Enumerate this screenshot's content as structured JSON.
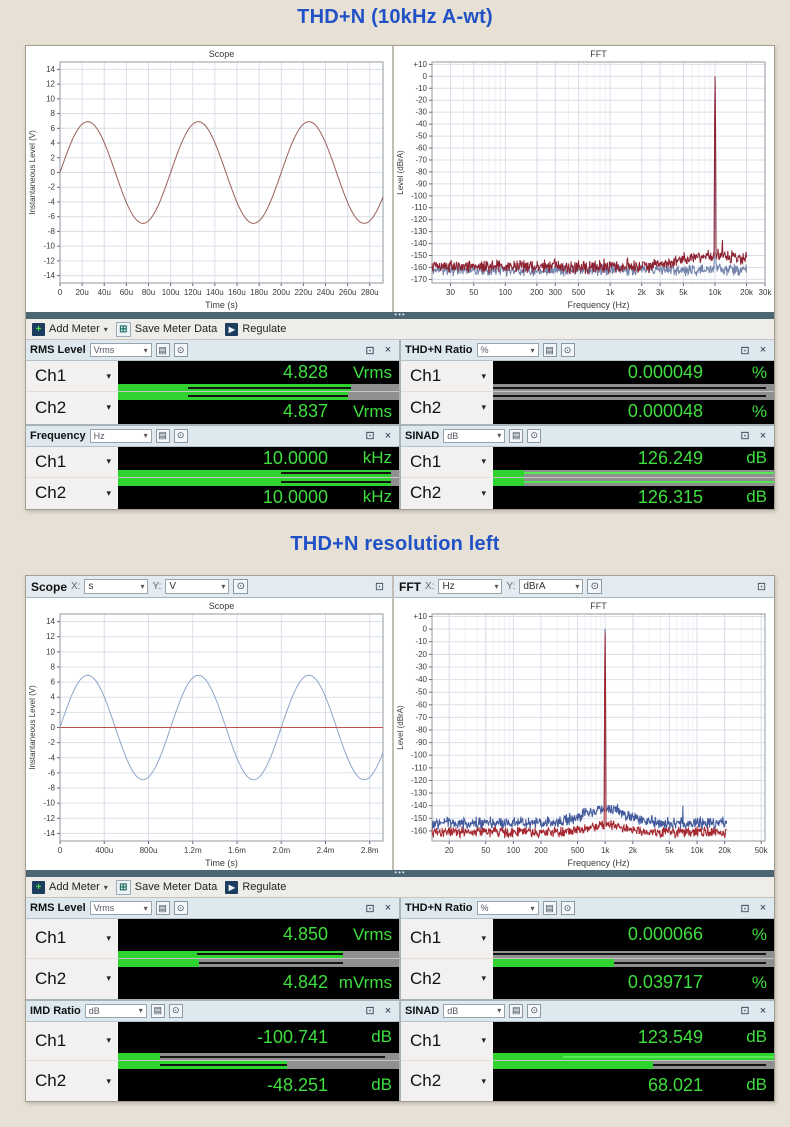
{
  "page": {
    "heading1": "THD+N (10kHz A-wt)",
    "heading2": "THD+N resolution left"
  },
  "colors": {
    "heading_blue": "#2151c6",
    "value_green": "#3fdd3f",
    "bar_green": "#2fd32f",
    "splitter": "#4d6673",
    "meter_header_bg": "#dde8ef",
    "page_bg": "#e7e1d5"
  },
  "toolbar": {
    "add_meter": "Add Meter",
    "save_meter_data": "Save Meter Data",
    "regulate": "Regulate"
  },
  "sections": [
    {
      "meters": [
        {
          "title": "RMS Level",
          "unit_selector": "Vrms",
          "channels": [
            {
              "label": "Ch1",
              "value": "4.828",
              "unit": "Vrms",
              "bar": {
                "fill": 83,
                "line": [
                  25,
                  83
                ]
              }
            },
            {
              "label": "Ch2",
              "value": "4.837",
              "unit": "Vrms",
              "bar": {
                "fill": 82,
                "line": [
                  25,
                  82
                ]
              }
            }
          ]
        },
        {
          "title": "THD+N Ratio",
          "unit_selector": "%",
          "channels": [
            {
              "label": "Ch1",
              "value": "0.000049",
              "unit": "%",
              "bar": {
                "fill": 0,
                "line": [
                  0,
                  97
                ]
              }
            },
            {
              "label": "Ch2",
              "value": "0.000048",
              "unit": "%",
              "bar": {
                "fill": 0,
                "line": [
                  0,
                  97
                ]
              }
            }
          ]
        },
        {
          "title": "Frequency",
          "unit_selector": "Hz",
          "channels": [
            {
              "label": "Ch1",
              "value": "10.0000",
              "unit": "kHz",
              "bar": {
                "fill": 97,
                "line": [
                  58,
                  97
                ]
              }
            },
            {
              "label": "Ch2",
              "value": "10.0000",
              "unit": "kHz",
              "bar": {
                "fill": 97,
                "line": [
                  58,
                  97
                ]
              }
            }
          ]
        },
        {
          "title": "SINAD",
          "unit_selector": "dB",
          "channels": [
            {
              "label": "Ch1",
              "value": "126.249",
              "unit": "dB",
              "bar": {
                "fill": 11,
                "line": [
                  11,
                  100
                ],
                "green": true
              }
            },
            {
              "label": "Ch2",
              "value": "126.315",
              "unit": "dB",
              "bar": {
                "fill": 11,
                "line": [
                  11,
                  100
                ],
                "green": true
              }
            }
          ]
        }
      ]
    },
    {
      "scope_header": {
        "title": "Scope",
        "x_label": "X:",
        "x_value": "s",
        "y_label": "Y:",
        "y_value": "V"
      },
      "fft_header": {
        "title": "FFT",
        "x_label": "X:",
        "x_value": "Hz",
        "y_label": "Y:",
        "y_value": "dBrA"
      },
      "meters": [
        {
          "title": "RMS Level",
          "unit_selector": "Vrms",
          "channels": [
            {
              "label": "Ch1",
              "value": "4.850",
              "unit": "Vrms",
              "bar": {
                "fill": 80,
                "line": [
                  28,
                  80
                ]
              }
            },
            {
              "label": "Ch2",
              "value": "4.842",
              "unit": "mVrms",
              "bar": {
                "fill": 29,
                "line": [
                  29,
                  80
                ]
              }
            }
          ]
        },
        {
          "title": "THD+N Ratio",
          "unit_selector": "%",
          "channels": [
            {
              "label": "Ch1",
              "value": "0.000066",
              "unit": "%",
              "bar": {
                "fill": 0,
                "line": [
                  0,
                  97
                ]
              }
            },
            {
              "label": "Ch2",
              "value": "0.039717",
              "unit": "%",
              "bar": {
                "fill": 43,
                "line": [
                  43,
                  97
                ]
              }
            }
          ]
        },
        {
          "title": "IMD Ratio",
          "unit_selector": "dB",
          "channels": [
            {
              "label": "Ch1",
              "value": "-100.741",
              "unit": "dB",
              "bar": {
                "fill": 15,
                "line": [
                  15,
                  95
                ]
              }
            },
            {
              "label": "Ch2",
              "value": "-48.251",
              "unit": "dB",
              "bar": {
                "fill": 60,
                "line": [
                  15,
                  60
                ]
              }
            }
          ]
        },
        {
          "title": "SINAD",
          "unit_selector": "dB",
          "channels": [
            {
              "label": "Ch1",
              "value": "123.549",
              "unit": "dB",
              "bar": {
                "fill": 100,
                "line": [
                  25,
                  100
                ],
                "green": true
              }
            },
            {
              "label": "Ch2",
              "value": "68.021",
              "unit": "dB",
              "bar": {
                "fill": 57,
                "line": [
                  57,
                  97
                ]
              }
            }
          ]
        }
      ]
    }
  ],
  "chart_data": [
    {
      "id": "scope-top",
      "type": "line",
      "title": "Scope",
      "xlabel": "Time (s)",
      "ylabel": "Instantaneous Level (V)",
      "xscale": "linear",
      "xlim": [
        0,
        0.000292
      ],
      "ylim": [
        -15,
        15
      ],
      "ml": 34,
      "xticks": {
        "values": [
          0,
          2e-05,
          4e-05,
          6e-05,
          8e-05,
          0.0001,
          0.00012,
          0.00014,
          0.00016,
          0.00018,
          0.0002,
          0.00022,
          0.00024,
          0.00026,
          0.00028
        ],
        "labels": [
          "0",
          "20u",
          "40u",
          "60u",
          "80u",
          "100u",
          "120u",
          "140u",
          "160u",
          "180u",
          "200u",
          "220u",
          "240u",
          "260u",
          "280u"
        ]
      },
      "yticks": {
        "values": [
          14,
          12,
          10,
          8,
          6,
          4,
          2,
          0,
          -2,
          -4,
          -6,
          -8,
          -10,
          -12,
          -14
        ],
        "labels": [
          "14",
          "12",
          "10",
          "8",
          "6",
          "4",
          "2",
          "0",
          "-2",
          "-4",
          "-6",
          "-8",
          "-10",
          "-12",
          "-14"
        ]
      },
      "series": [
        {
          "name": "ch1-sine",
          "kind": "sine",
          "amplitude": 6.9,
          "period": 0.0001,
          "color": "#9a6059",
          "width": 1
        }
      ]
    },
    {
      "id": "fft-top",
      "type": "line",
      "title": "FFT",
      "xlabel": "Frequency (Hz)",
      "ylabel": "Level (dBrA)",
      "xscale": "log",
      "xlim": [
        20,
        30000
      ],
      "ylim": [
        -173,
        12
      ],
      "ml": 38,
      "xticks": {
        "values": [
          30,
          50,
          100,
          200,
          300,
          500,
          1000,
          2000,
          3000,
          5000,
          10000,
          20000,
          30000
        ],
        "labels": [
          "30",
          "50",
          "100",
          "200",
          "300",
          "500",
          "1k",
          "2k",
          "3k",
          "5k",
          "10k",
          "20k",
          "30k"
        ]
      },
      "yticks": {
        "values": [
          10,
          0,
          -10,
          -20,
          -30,
          -40,
          -50,
          -60,
          -70,
          -80,
          -90,
          -100,
          -110,
          -120,
          -130,
          -140,
          -150,
          -160,
          -170
        ],
        "labels": [
          "+10",
          "0",
          "-10",
          "-20",
          "-30",
          "-40",
          "-50",
          "-60",
          "-70",
          "-80",
          "-90",
          "-100",
          "-110",
          "-120",
          "-130",
          "-140",
          "-150",
          "-160",
          "-170"
        ]
      },
      "series": [
        {
          "name": "ch2-noise",
          "kind": "noise",
          "seed": 11,
          "floor": -162,
          "jitter": 6,
          "fmax": 20000,
          "color": "#7484ad",
          "peaks": [
            {
              "f": 10000,
              "db": -4
            }
          ]
        },
        {
          "name": "ch1-noise",
          "kind": "noise",
          "seed": 5,
          "floor": -159,
          "jitter": 7,
          "fmax": 20000,
          "color": "#8e2130",
          "humps": [
            {
              "f": 10000,
              "w": 0.3,
              "a": 9
            }
          ],
          "peaks": [
            {
              "f": 10000,
              "db": 0
            },
            {
              "f": 11800,
              "db": -137
            },
            {
              "f": 19800,
              "db": -147
            }
          ]
        }
      ]
    },
    {
      "id": "scope-bottom",
      "type": "line",
      "title": "Scope",
      "xlabel": "Time (s)",
      "ylabel": "Instantaneous Level (V)",
      "xscale": "linear",
      "xlim": [
        0,
        0.00292
      ],
      "ylim": [
        -15,
        15
      ],
      "ml": 34,
      "xticks": {
        "values": [
          0,
          0.0004,
          0.0008,
          0.0012,
          0.0016,
          0.002,
          0.0024,
          0.0028
        ],
        "labels": [
          "0",
          "400u",
          "800u",
          "1.2m",
          "1.6m",
          "2.0m",
          "2.4m",
          "2.8m"
        ]
      },
      "yticks": {
        "values": [
          14,
          12,
          10,
          8,
          6,
          4,
          2,
          0,
          -2,
          -4,
          -6,
          -8,
          -10,
          -12,
          -14
        ],
        "labels": [
          "14",
          "12",
          "10",
          "8",
          "6",
          "4",
          "2",
          "0",
          "-2",
          "-4",
          "-6",
          "-8",
          "-10",
          "-12",
          "-14"
        ]
      },
      "series": [
        {
          "name": "ch1-sine",
          "kind": "sine",
          "amplitude": 6.9,
          "period": 0.001,
          "color": "#8ea6c8",
          "width": 1
        },
        {
          "name": "ch2-flat",
          "kind": "flat",
          "y": 0,
          "color": "#c24d4d",
          "width": 1
        }
      ]
    },
    {
      "id": "fft-bottom",
      "type": "line",
      "title": "FFT",
      "xlabel": "Frequency (Hz)",
      "ylabel": "Level (dBrA)",
      "xscale": "log",
      "xlim": [
        13,
        55000
      ],
      "ylim": [
        -168,
        12
      ],
      "ml": 38,
      "xticks": {
        "values": [
          20,
          50,
          100,
          200,
          500,
          1000,
          2000,
          5000,
          10000,
          20000,
          50000
        ],
        "labels": [
          "20",
          "50",
          "100",
          "200",
          "500",
          "1k",
          "2k",
          "5k",
          "10k",
          "20k",
          "50k"
        ]
      },
      "yticks": {
        "values": [
          10,
          0,
          -10,
          -20,
          -30,
          -40,
          -50,
          -60,
          -70,
          -80,
          -90,
          -100,
          -110,
          -120,
          -130,
          -140,
          -150,
          -160
        ],
        "labels": [
          "+10",
          "0",
          "-10",
          "-20",
          "-30",
          "-40",
          "-50",
          "-60",
          "-70",
          "-80",
          "-90",
          "-100",
          "-110",
          "-120",
          "-130",
          "-140",
          "-150",
          "-160"
        ]
      },
      "series": [
        {
          "name": "ch1-noise",
          "kind": "noise",
          "seed": 9,
          "floor": -154,
          "jitter": 6,
          "fmax": 21000,
          "color": "#42599b",
          "humps": [
            {
              "f": 1000,
              "w": 0.22,
              "a": 12
            }
          ],
          "peaks": [
            {
              "f": 1000,
              "db": 0
            },
            {
              "f": 3500,
              "db": -149
            },
            {
              "f": 7000,
              "db": -140
            },
            {
              "f": 15000,
              "db": -150
            }
          ]
        },
        {
          "name": "ch2-noise",
          "kind": "noise",
          "seed": 4,
          "floor": -161,
          "jitter": 5,
          "fmax": 21000,
          "color": "#a5272f",
          "humps": [
            {
              "f": 1000,
              "w": 0.18,
              "a": 6
            }
          ],
          "peaks": [
            {
              "f": 1000,
              "db": -3
            }
          ]
        }
      ]
    }
  ]
}
